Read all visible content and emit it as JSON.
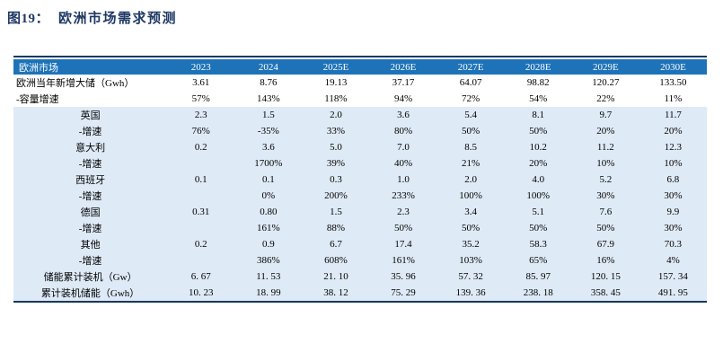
{
  "title": {
    "prefix": "图19：",
    "text": "欧洲市场需求预测"
  },
  "colors": {
    "title": "#1F3864",
    "rule": "#17375E",
    "header_bg": "#1E73B8",
    "header_text": "#FFFFFF",
    "row_alt_bg": "#DEEAF6",
    "text": "#000000"
  },
  "table": {
    "header": [
      "欧洲市场",
      "2023",
      "2024",
      "2025E",
      "2026E",
      "2027E",
      "2028E",
      "2029E",
      "2030E"
    ],
    "rows": [
      {
        "label": "欧洲当年新增大储（Gwh）",
        "values": [
          "3.61",
          "8.76",
          "19.13",
          "37.17",
          "64.07",
          "98.82",
          "120.27",
          "133.50"
        ]
      },
      {
        "label": "-容量增速",
        "values": [
          "57%",
          "143%",
          "118%",
          "94%",
          "72%",
          "54%",
          "22%",
          "11%"
        ]
      },
      {
        "label": "英国",
        "values": [
          "2.3",
          "1.5",
          "2.0",
          "3.6",
          "5.4",
          "8.1",
          "9.7",
          "11.7"
        ]
      },
      {
        "label": "-增速",
        "values": [
          "76%",
          "-35%",
          "33%",
          "80%",
          "50%",
          "50%",
          "20%",
          "20%"
        ]
      },
      {
        "label": "意大利",
        "values": [
          "0.2",
          "3.6",
          "5.0",
          "7.0",
          "8.5",
          "10.2",
          "11.2",
          "12.3"
        ]
      },
      {
        "label": "-增速",
        "values": [
          "",
          "1700%",
          "39%",
          "40%",
          "21%",
          "20%",
          "10%",
          "10%"
        ]
      },
      {
        "label": "西班牙",
        "values": [
          "0.1",
          "0.1",
          "0.3",
          "1.0",
          "2.0",
          "4.0",
          "5.2",
          "6.8"
        ]
      },
      {
        "label": "-增速",
        "values": [
          "",
          "0%",
          "200%",
          "233%",
          "100%",
          "100%",
          "30%",
          "30%"
        ]
      },
      {
        "label": "德国",
        "values": [
          "0.31",
          "0.80",
          "1.5",
          "2.3",
          "3.4",
          "5.1",
          "7.6",
          "9.9"
        ]
      },
      {
        "label": "-增速",
        "values": [
          "",
          "161%",
          "88%",
          "50%",
          "50%",
          "50%",
          "50%",
          "30%"
        ]
      },
      {
        "label": "其他",
        "values": [
          "0.2",
          "0.9",
          "6.7",
          "17.4",
          "35.2",
          "58.3",
          "67.9",
          "70.3"
        ]
      },
      {
        "label": "-增速",
        "values": [
          "",
          "386%",
          "608%",
          "161%",
          "103%",
          "65%",
          "16%",
          "4%"
        ]
      },
      {
        "label": "储能累计装机（Gw）",
        "values": [
          "6. 67",
          "11. 53",
          "21. 10",
          "35. 96",
          "57. 32",
          "85. 97",
          "120. 15",
          "157. 34"
        ]
      },
      {
        "label": "累计装机储能（Gwh）",
        "values": [
          "10. 23",
          "18. 99",
          "38. 12",
          "75. 29",
          "139. 36",
          "238. 18",
          "358. 45",
          "491. 95"
        ]
      }
    ]
  }
}
